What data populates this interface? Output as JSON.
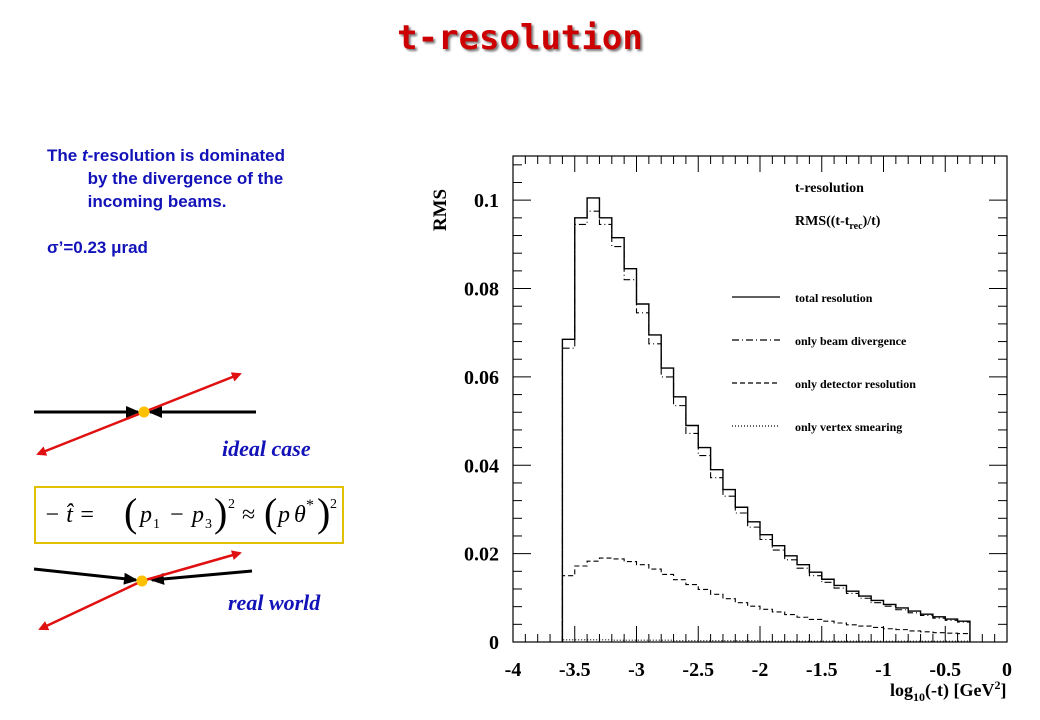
{
  "slide": {
    "title": "t-resolution",
    "description_prefix": "The ",
    "description_t": "t",
    "description_rest": "-resolution is dominated by the divergence of the incoming beams.",
    "sigma_text": "σ’=0.23 μrad",
    "ideal_label": "ideal case",
    "real_label": "real world",
    "formula": {
      "lhs": "− t̂ = ",
      "p1": "p",
      "sub1": "1",
      "minus": "−",
      "p3": "p",
      "sub3": "3",
      "approx": "≈",
      "p": "p",
      "theta": "θ",
      "star": "*",
      "exp": "2"
    },
    "colors": {
      "accent_red": "#cc0000",
      "text_blue": "#1212b8",
      "beam_red": "#e01010",
      "vertex_gold": "#ffc000",
      "formula_border": "#e0c000"
    }
  },
  "chart_data": {
    "type": "line",
    "title": "t-resolution",
    "subtitle": "RMS((t-t_rec)/t)",
    "subtitle_main": "RMS((t-t",
    "subtitle_sub": "rec",
    "subtitle_tail": ")/t)",
    "ylabel": "RMS",
    "xlabel_prefix": "log",
    "xlabel_sub": "10",
    "xlabel_mid": "(-t) [GeV",
    "xlabel_sup": "2",
    "xlabel_end": "]",
    "xlim": [
      -4,
      0
    ],
    "ylim": [
      0,
      0.11
    ],
    "x_ticks": [
      "-4",
      "-3.5",
      "-3",
      "-2.5",
      "-2",
      "-1.5",
      "-1",
      "-0.5",
      "0"
    ],
    "y_ticks": [
      "0",
      "0.02",
      "0.04",
      "0.06",
      "0.08",
      "0.1"
    ],
    "legend_position": "right",
    "bin_edges": [
      -3.6,
      -3.45,
      -3.3,
      -3.15,
      -3.0,
      -2.85,
      -2.7,
      -2.55,
      -2.4,
      -2.25,
      -2.1,
      -1.95,
      -1.8,
      -1.65,
      -1.5,
      -1.35,
      -1.2,
      -1.05,
      -0.9,
      -0.75,
      -0.6,
      -0.45,
      -0.3
    ],
    "bin_edges_fine": [
      -3.6,
      -3.5,
      -3.4,
      -3.3,
      -3.2,
      -3.1,
      -3.0,
      -2.9,
      -2.8,
      -2.7,
      -2.6,
      -2.5,
      -2.4,
      -2.3,
      -2.2,
      -2.1,
      -2.0,
      -1.9,
      -1.8,
      -1.7,
      -1.6,
      -1.5,
      -1.4,
      -1.3,
      -1.2,
      -1.1,
      -1.0,
      -0.9,
      -0.8,
      -0.7,
      -0.6,
      -0.5,
      -0.4,
      -0.3
    ],
    "series": [
      {
        "name": "total resolution",
        "style": "solid",
        "binning": "fine",
        "values": [
          0.0685,
          0.096,
          0.1005,
          0.096,
          0.0915,
          0.0845,
          0.0765,
          0.0695,
          0.062,
          0.0555,
          0.049,
          0.044,
          0.039,
          0.0345,
          0.0305,
          0.0272,
          0.0243,
          0.0218,
          0.0195,
          0.0175,
          0.0158,
          0.0142,
          0.0128,
          0.0115,
          0.0104,
          0.0094,
          0.0085,
          0.0077,
          0.007,
          0.0063,
          0.0057,
          0.0052,
          0.0047
        ]
      },
      {
        "name": "only beam divergence",
        "style": "dashdot",
        "binning": "fine",
        "values": [
          0.0665,
          0.0945,
          0.0975,
          0.0945,
          0.0895,
          0.082,
          0.0745,
          0.0675,
          0.06,
          0.0535,
          0.0472,
          0.0422,
          0.0372,
          0.033,
          0.0292,
          0.026,
          0.0232,
          0.0208,
          0.0186,
          0.0167,
          0.015,
          0.0135,
          0.0122,
          0.011,
          0.0099,
          0.0089,
          0.0081,
          0.0073,
          0.0066,
          0.006,
          0.0054,
          0.0049,
          0.0045
        ]
      },
      {
        "name": "only detector resolution",
        "style": "dashed",
        "binning": "fine",
        "values": [
          0.015,
          0.0172,
          0.0183,
          0.019,
          0.0188,
          0.0182,
          0.0175,
          0.0165,
          0.0153,
          0.0141,
          0.013,
          0.0119,
          0.0108,
          0.0098,
          0.0089,
          0.0081,
          0.0074,
          0.0068,
          0.0062,
          0.0056,
          0.0051,
          0.0047,
          0.0043,
          0.0039,
          0.0036,
          0.0033,
          0.003,
          0.0028,
          0.0025,
          0.0023,
          0.0021,
          0.002,
          0.0019
        ]
      },
      {
        "name": "only vertex smearing",
        "style": "dotted",
        "binning": "fine",
        "values": [
          0.0005,
          0.0005,
          0.0005,
          0.0005,
          0.0004,
          0.0004,
          0.0004,
          0.0004,
          0.0004,
          0.0003,
          0.0003,
          0.0003,
          0.0003,
          0.0003,
          0.0003,
          0.0003,
          0.0002,
          0.0002,
          0.0002,
          0.0002,
          0.0002,
          0.0002,
          0.0002,
          0.0002,
          0.0002,
          0.0002,
          0.0002,
          0.0002,
          0.0002,
          0.0002,
          0.0002,
          0.0002,
          0.0002
        ]
      }
    ]
  }
}
